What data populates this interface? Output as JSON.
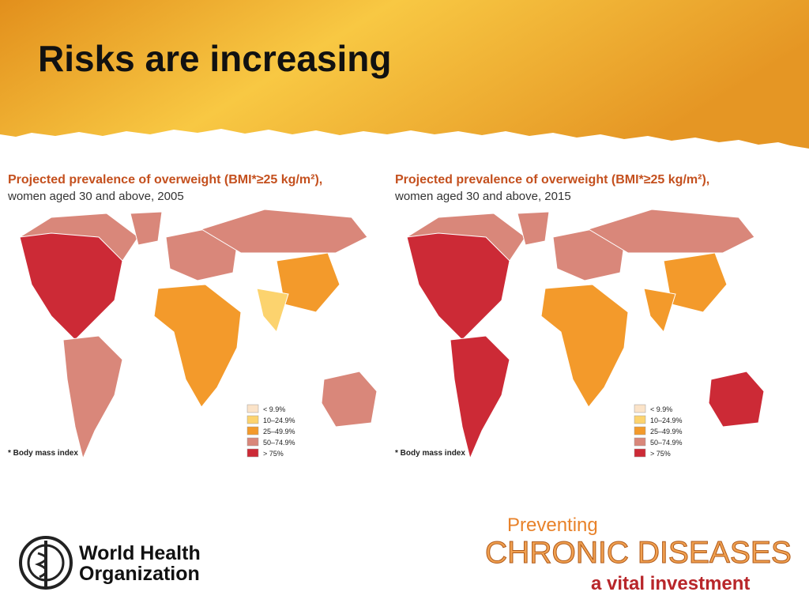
{
  "header": {
    "title": "Risks are increasing"
  },
  "maps": [
    {
      "title": "Projected prevalence of overweight (BMI*≥25 kg/m²),",
      "subtitle": "women aged 30 and above, 2005",
      "footnote": "* Body mass index",
      "legend": [
        {
          "label": "< 9.9%",
          "color": "#fbe3c8"
        },
        {
          "label": "10–24.9%",
          "color": "#fcd36e"
        },
        {
          "label": "25–49.9%",
          "color": "#f39a2b"
        },
        {
          "label": "50–74.9%",
          "color": "#d9877a"
        },
        {
          "label": "> 75%",
          "color": "#cc2a36"
        }
      ]
    },
    {
      "title": "Projected prevalence of overweight (BMI*≥25 kg/m²),",
      "subtitle": "women aged 30 and above, 2015",
      "footnote": "* Body mass index",
      "legend": [
        {
          "label": "< 9.9%",
          "color": "#fbe3c8"
        },
        {
          "label": "10–24.9%",
          "color": "#fcd36e"
        },
        {
          "label": "25–49.9%",
          "color": "#f39a2b"
        },
        {
          "label": "50–74.9%",
          "color": "#d9877a"
        },
        {
          "label": "> 75%",
          "color": "#cc2a36"
        }
      ]
    }
  ],
  "footer": {
    "organization": [
      "World Health",
      "Organization"
    ],
    "campaign": {
      "line1": "Preventing",
      "line2": "CHRONIC DISEASES",
      "line3": "a vital investment"
    }
  }
}
